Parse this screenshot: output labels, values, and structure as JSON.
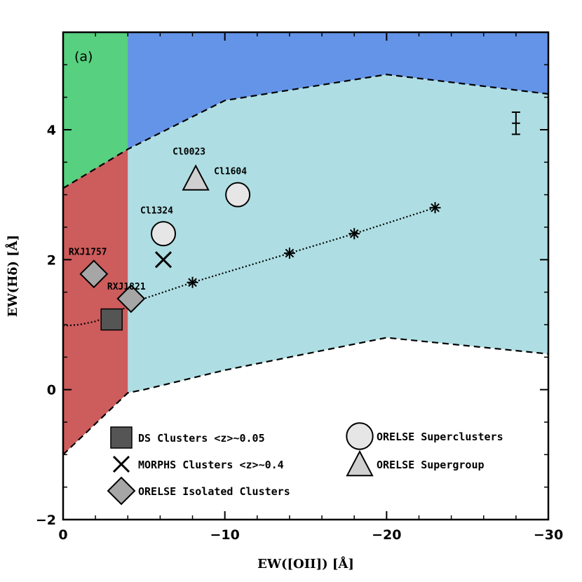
{
  "chart_data": {
    "type": "scatter",
    "panel_label": "(a)",
    "xlabel": "EW([OII]) [Å]",
    "ylabel": "EW(Hδ) [Å]",
    "xlim": [
      0,
      -30
    ],
    "ylim": [
      -2,
      5.5
    ],
    "xticks": [
      0,
      -10,
      -20,
      -30
    ],
    "xtick_labels": [
      "0",
      "−10",
      "−20",
      "−30"
    ],
    "yticks": [
      -2,
      0,
      2,
      4
    ],
    "ytick_labels": [
      "−2",
      "0",
      "2",
      "4"
    ],
    "regions": {
      "colors": {
        "green": "#57d07f",
        "blue": "#6494e8",
        "red": "#cd5c5c",
        "cyan": "#aedee3"
      },
      "vertical_boundary_x": -4,
      "upper_boundary": [
        [
          0,
          3.1
        ],
        [
          -4,
          3.7
        ],
        [
          -10,
          4.45
        ],
        [
          -20,
          4.85
        ],
        [
          -30,
          4.55
        ]
      ],
      "lower_boundary": [
        [
          0,
          -1.0
        ],
        [
          -4,
          -0.05
        ],
        [
          -5,
          0.0
        ],
        [
          -10,
          0.3
        ],
        [
          -20,
          0.8
        ],
        [
          -30,
          0.55
        ]
      ]
    },
    "model_track": {
      "curve": [
        [
          0,
          0.98
        ],
        [
          -1,
          1.0
        ],
        [
          -2,
          1.05
        ],
        [
          -3,
          1.15
        ],
        [
          -4,
          1.28
        ],
        [
          -5,
          1.4
        ],
        [
          -8,
          1.65
        ],
        [
          -14,
          2.1
        ],
        [
          -18,
          2.4
        ],
        [
          -23,
          2.8
        ]
      ],
      "star_points": [
        [
          -4.2,
          1.3
        ],
        [
          -8,
          1.65
        ],
        [
          -14,
          2.1
        ],
        [
          -18,
          2.4
        ],
        [
          -23,
          2.8
        ]
      ]
    },
    "error_bar": {
      "x": -28,
      "y": 4.1,
      "yerr": 0.17,
      "xerr": 0.25
    },
    "series": [
      {
        "name": "DS Clusters <z>~0.05",
        "marker": "square",
        "color": "#555555",
        "points": [
          [
            -3,
            1.08
          ]
        ]
      },
      {
        "name": "MORPHS Clusters <z>~0.4",
        "marker": "x",
        "color": "#000000",
        "points": [
          [
            -6.2,
            2.0
          ]
        ]
      },
      {
        "name": "ORELSE Isolated Clusters",
        "marker": "diamond",
        "color": "#a6a6a6",
        "points": [
          [
            -1.9,
            1.78
          ],
          [
            -4.2,
            1.4
          ]
        ],
        "labels": [
          "RXJ1757",
          "RXJ1821"
        ]
      },
      {
        "name": "ORELSE Superclusters",
        "marker": "circle",
        "color": "#e6e6e6",
        "points": [
          [
            -6.2,
            2.4
          ],
          [
            -10.8,
            3.0
          ]
        ],
        "labels": [
          "Cl1324",
          "Cl1604"
        ]
      },
      {
        "name": "ORELSE Supergroup",
        "marker": "triangle",
        "color": "#d0d0d0",
        "points": [
          [
            -8.2,
            3.25
          ]
        ],
        "labels": [
          "Cl0023"
        ]
      }
    ],
    "legend": {
      "placement": "bottom",
      "items": [
        {
          "label": "DS Clusters <z>~0.05",
          "marker": "square"
        },
        {
          "label": "MORPHS Clusters <z>~0.4",
          "marker": "x"
        },
        {
          "label": "ORELSE Isolated Clusters",
          "marker": "diamond"
        },
        {
          "label": "ORELSE Superclusters",
          "marker": "circle"
        },
        {
          "label": "ORELSE Supergroup",
          "marker": "triangle"
        }
      ]
    }
  }
}
